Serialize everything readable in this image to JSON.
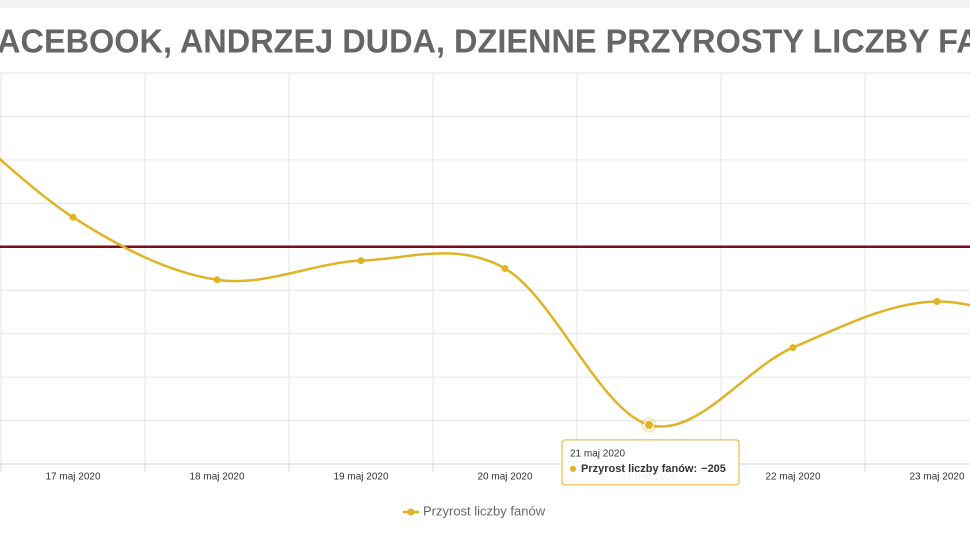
{
  "chart_data": {
    "type": "line",
    "title": "FACEBOOK, ANDRZEJ DUDA, DZIENNE PRZYROSTY LICZBY FANÓW",
    "categories": [
      null,
      "17 maj 2020",
      "18 maj 2020",
      "19 maj 2020",
      "20 maj 2020",
      "21 maj 2020",
      "22 maj 2020",
      "23 maj 2020",
      null
    ],
    "series": [
      {
        "name": "Przyrost liczby fanów",
        "color": "#e0b326",
        "values": [
          175,
          34,
          -38,
          -16,
          -25,
          -205,
          -116,
          -63,
          -110
        ]
      }
    ],
    "ylim": [
      -250,
      200
    ],
    "yticks": [
      -250,
      -200,
      -150,
      -100,
      -50,
      0,
      50,
      100,
      150,
      200
    ],
    "grid": true,
    "plot_line": {
      "value": 0,
      "color": "#7b0c1c"
    },
    "legend": "bottom",
    "tooltip": {
      "title": "21 maj 2020",
      "text": "Przyrost liczby fanów:",
      "value": "−205"
    }
  }
}
